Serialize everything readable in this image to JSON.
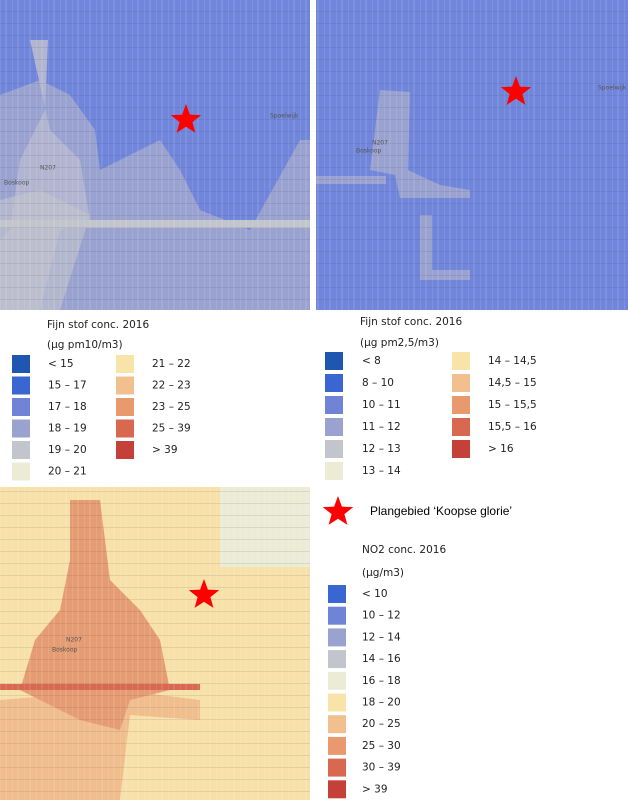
{
  "maps": [
    {
      "labels": [
        "N207",
        "Boskoop",
        "Spoelwijk"
      ]
    },
    {
      "labels": [
        "N207",
        "Boskoop",
        "Spoelwijk"
      ]
    },
    {
      "labels": [
        "N207",
        "Boskoop"
      ]
    }
  ],
  "legend_pm10": {
    "title": "Fijn stof conc. 2016",
    "unit": "(µg pm10/m3)",
    "items": [
      {
        "label": "< 15",
        "color": "#1f57b0"
      },
      {
        "label": "15 – 17",
        "color": "#3a66d2"
      },
      {
        "label": "17 – 18",
        "color": "#6f84d6"
      },
      {
        "label": "18 – 19",
        "color": "#9aa2d0"
      },
      {
        "label": "19 – 20",
        "color": "#c3c5cc"
      },
      {
        "label": "20 – 21",
        "color": "#ecebd6"
      },
      {
        "label": "21 – 22",
        "color": "#f8e3a8"
      },
      {
        "label": "22 – 23",
        "color": "#f2c08e"
      },
      {
        "label": "23 – 25",
        "color": "#e89a6e"
      },
      {
        "label": "25 – 39",
        "color": "#d86850"
      },
      {
        "label": "> 39",
        "color": "#c6403a"
      }
    ]
  },
  "legend_pm25": {
    "title": "Fijn stof conc. 2016",
    "unit": "(µg pm2,5/m3)",
    "items": [
      {
        "label": "< 8",
        "color": "#1f57b0"
      },
      {
        "label": "8 – 10",
        "color": "#3a66d2"
      },
      {
        "label": "10 – 11",
        "color": "#6f84d6"
      },
      {
        "label": "11 – 12",
        "color": "#9aa2d0"
      },
      {
        "label": "12 – 13",
        "color": "#c3c5cc"
      },
      {
        "label": "13 – 14",
        "color": "#ecebd6"
      },
      {
        "label": "14 – 14,5",
        "color": "#f8e3a8"
      },
      {
        "label": "14,5 – 15",
        "color": "#f2c08e"
      },
      {
        "label": "15 – 15,5",
        "color": "#e89a6e"
      },
      {
        "label": "15,5 – 16",
        "color": "#d86850"
      },
      {
        "label": "> 16",
        "color": "#c6403a"
      }
    ]
  },
  "plan_area": {
    "label": "Plangebied ‘Koopse glorie’"
  },
  "legend_no2": {
    "title": "NO2 conc. 2016",
    "unit": "(µg/m3)",
    "items": [
      {
        "label": "< 10",
        "color": "#3a66d2"
      },
      {
        "label": "10 – 12",
        "color": "#6f84d6"
      },
      {
        "label": "12 – 14",
        "color": "#9aa2d0"
      },
      {
        "label": "14 – 16",
        "color": "#c3c5cc"
      },
      {
        "label": "16 – 18",
        "color": "#ecebd6"
      },
      {
        "label": "18 – 20",
        "color": "#f8e3a8"
      },
      {
        "label": "20 – 25",
        "color": "#f2c08e"
      },
      {
        "label": "25 – 30",
        "color": "#e89a6e"
      },
      {
        "label": "30 – 39",
        "color": "#d86850"
      },
      {
        "label": "> 39",
        "color": "#c6403a"
      }
    ]
  }
}
